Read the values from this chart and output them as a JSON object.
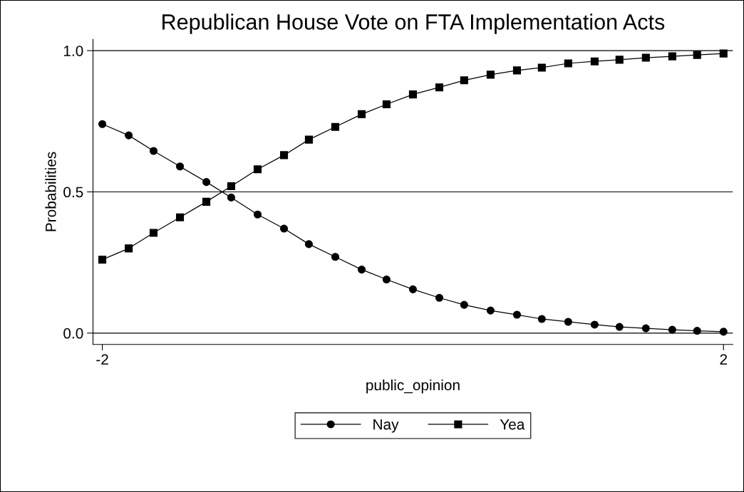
{
  "chart_data": {
    "type": "line",
    "title": "Republican House Vote on FTA Implementation Acts",
    "xlabel": "public_opinion",
    "ylabel": "Probabilities",
    "x": [
      -2,
      -1.83,
      -1.67,
      -1.5,
      -1.33,
      -1.17,
      -1,
      -0.83,
      -0.67,
      -0.5,
      -0.33,
      -0.17,
      0,
      0.17,
      0.33,
      0.5,
      0.67,
      0.83,
      1,
      1.17,
      1.33,
      1.5,
      1.67,
      1.83,
      2
    ],
    "series": [
      {
        "name": "Nay",
        "color": "#000000",
        "marker": "circle",
        "values": [
          0.74,
          0.7,
          0.645,
          0.59,
          0.535,
          0.48,
          0.42,
          0.37,
          0.315,
          0.27,
          0.225,
          0.19,
          0.155,
          0.125,
          0.1,
          0.08,
          0.065,
          0.05,
          0.04,
          0.03,
          0.022,
          0.017,
          0.012,
          0.008,
          0.005
        ]
      },
      {
        "name": "Yea",
        "color": "#000000",
        "marker": "square",
        "values": [
          0.26,
          0.3,
          0.355,
          0.41,
          0.465,
          0.52,
          0.58,
          0.63,
          0.685,
          0.73,
          0.775,
          0.81,
          0.845,
          0.87,
          0.895,
          0.915,
          0.93,
          0.94,
          0.955,
          0.962,
          0.968,
          0.975,
          0.98,
          0.985,
          0.99
        ]
      }
    ],
    "xlim": [
      -2.06,
      2.06
    ],
    "ylim": [
      -0.04,
      1.04
    ],
    "xticks": [
      -2,
      2
    ],
    "yticks": [
      {
        "value": 0,
        "label": "0.0"
      },
      {
        "value": 0.5,
        "label": "0.5"
      },
      {
        "value": 1,
        "label": "1.0"
      }
    ],
    "grid": "y",
    "legend": "bottom"
  }
}
